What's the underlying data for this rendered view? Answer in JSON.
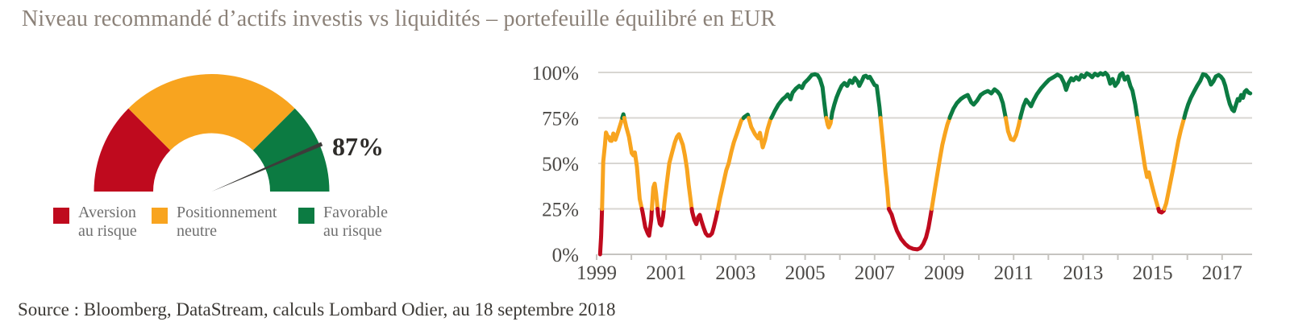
{
  "title": "Niveau recommandé d’actifs investis vs liquidités – portefeuille équilibré en EUR",
  "source": "Source : Bloomberg, DataStream, calculs Lombard Odier, au 18 septembre 2018",
  "colors": {
    "risk_averse": "#bf0a1e",
    "neutral": "#f8a41f",
    "risk_favorable": "#0c7b42",
    "needle": "#3d3c3a",
    "title_text": "#8b8178",
    "legend_text": "#6f6f6f",
    "axis_text": "#4c4a47",
    "source_text": "#3b3834",
    "gridline": "#d8d6d2",
    "axis_line": "#c6c4c0",
    "value_text": "#2e2c29"
  },
  "gauge": {
    "value": 87,
    "value_label": "87%",
    "min": 0,
    "max": 100,
    "segments": [
      {
        "name": "aversion-au-risque",
        "from": 0,
        "to": 25,
        "color_key": "risk_averse"
      },
      {
        "name": "positionnement-neutre",
        "from": 25,
        "to": 75,
        "color_key": "neutral"
      },
      {
        "name": "favorable-au-risque",
        "from": 75,
        "to": 100,
        "color_key": "risk_favorable"
      }
    ]
  },
  "legend": {
    "items": [
      {
        "line1": "Aversion",
        "line2": "au risque",
        "color_key": "risk_averse"
      },
      {
        "line1": "Positionnement",
        "line2": "neutre",
        "color_key": "neutral"
      },
      {
        "line1": "Favorable",
        "line2": "au risque",
        "color_key": "risk_favorable"
      }
    ]
  },
  "chart_data": {
    "type": "line",
    "x_unit": "year",
    "y_unit": "percent",
    "xlim": [
      1999,
      2018
    ],
    "ylim": [
      0,
      100
    ],
    "grid": "horizontal",
    "thresholds": {
      "low": 25,
      "high": 75
    },
    "threshold_colors": {
      "below_low": "risk_averse",
      "between": "neutral",
      "above_high": "risk_favorable"
    },
    "y_ticks": [
      {
        "value": 0,
        "label": "0%"
      },
      {
        "value": 25,
        "label": "25%"
      },
      {
        "value": 50,
        "label": "50%"
      },
      {
        "value": 75,
        "label": "75%"
      },
      {
        "value": 100,
        "label": "100%"
      }
    ],
    "x_ticks": [
      {
        "year": 1999,
        "label": "1999"
      },
      {
        "year": 2001,
        "label": "2001"
      },
      {
        "year": 2003,
        "label": "2003"
      },
      {
        "year": 2005,
        "label": "2005"
      },
      {
        "year": 2007,
        "label": "2007"
      },
      {
        "year": 2009,
        "label": "2009"
      },
      {
        "year": 2011,
        "label": "2011"
      },
      {
        "year": 2013,
        "label": "2013"
      },
      {
        "year": 2015,
        "label": "2015"
      },
      {
        "year": 2017,
        "label": "2017"
      }
    ],
    "minor_tick_years": [
      1999,
      2000,
      2001,
      2002,
      2003,
      2004,
      2005,
      2006,
      2007,
      2008,
      2009,
      2010,
      2011,
      2012,
      2013,
      2014,
      2015,
      2016,
      2017
    ],
    "points": [
      [
        1999.1,
        0
      ],
      [
        1999.13,
        10
      ],
      [
        1999.16,
        28
      ],
      [
        1999.19,
        51
      ],
      [
        1999.24,
        60
      ],
      [
        1999.27,
        67
      ],
      [
        1999.31,
        65
      ],
      [
        1999.35,
        64.5
      ],
      [
        1999.39,
        62.5
      ],
      [
        1999.43,
        62.4
      ],
      [
        1999.48,
        66.4
      ],
      [
        1999.54,
        63
      ],
      [
        1999.62,
        67.5
      ],
      [
        1999.7,
        72.5
      ],
      [
        1999.77,
        77
      ],
      [
        1999.85,
        70.3
      ],
      [
        1999.93,
        64.6
      ],
      [
        2000.01,
        55.7
      ],
      [
        2000.06,
        54.4
      ],
      [
        2000.1,
        56
      ],
      [
        2000.16,
        48.2
      ],
      [
        2000.24,
        30.5
      ],
      [
        2000.32,
        23.4
      ],
      [
        2000.4,
        15
      ],
      [
        2000.47,
        11.5
      ],
      [
        2000.51,
        10.2
      ],
      [
        2000.57,
        19
      ],
      [
        2000.63,
        36.7
      ],
      [
        2000.67,
        38.9
      ],
      [
        2000.71,
        33.6
      ],
      [
        2000.77,
        21.7
      ],
      [
        2000.82,
        16.8
      ],
      [
        2000.86,
        15.9
      ],
      [
        2000.91,
        20.4
      ],
      [
        2000.95,
        27.9
      ],
      [
        2001.02,
        39.4
      ],
      [
        2001.09,
        50
      ],
      [
        2001.17,
        55.8
      ],
      [
        2001.25,
        61.5
      ],
      [
        2001.31,
        64.6
      ],
      [
        2001.37,
        66
      ],
      [
        2001.42,
        63.3
      ],
      [
        2001.48,
        60.2
      ],
      [
        2001.54,
        54.4
      ],
      [
        2001.6,
        46.9
      ],
      [
        2001.65,
        38.1
      ],
      [
        2001.7,
        30.5
      ],
      [
        2001.75,
        23.4
      ],
      [
        2001.81,
        19
      ],
      [
        2001.87,
        16.6
      ],
      [
        2001.92,
        20.4
      ],
      [
        2001.97,
        21.7
      ],
      [
        2002.02,
        18.1
      ],
      [
        2002.08,
        14.6
      ],
      [
        2002.14,
        11.5
      ],
      [
        2002.2,
        10.2
      ],
      [
        2002.26,
        10.3
      ],
      [
        2002.32,
        11.5
      ],
      [
        2002.37,
        14.8
      ],
      [
        2002.43,
        19.6
      ],
      [
        2002.49,
        24.8
      ],
      [
        2002.55,
        30.7
      ],
      [
        2002.6,
        35
      ],
      [
        2002.67,
        41
      ],
      [
        2002.73,
        46.2
      ],
      [
        2002.8,
        50
      ],
      [
        2002.88,
        56.6
      ],
      [
        2002.95,
        61.6
      ],
      [
        2003.03,
        66
      ],
      [
        2003.11,
        70.5
      ],
      [
        2003.16,
        73.5
      ],
      [
        2003.25,
        75.5
      ],
      [
        2003.35,
        76.8
      ],
      [
        2003.45,
        70
      ],
      [
        2003.56,
        66
      ],
      [
        2003.65,
        63.7
      ],
      [
        2003.7,
        66.8
      ],
      [
        2003.78,
        58.8
      ],
      [
        2003.85,
        63
      ],
      [
        2003.92,
        69
      ],
      [
        2004.0,
        74
      ],
      [
        2004.05,
        75.8
      ],
      [
        2004.12,
        78.6
      ],
      [
        2004.23,
        82.3
      ],
      [
        2004.35,
        85.2
      ],
      [
        2004.44,
        86.7
      ],
      [
        2004.5,
        87.9
      ],
      [
        2004.58,
        85.2
      ],
      [
        2004.64,
        88.9
      ],
      [
        2004.74,
        91.2
      ],
      [
        2004.83,
        92.6
      ],
      [
        2004.91,
        91.4
      ],
      [
        2004.98,
        94.2
      ],
      [
        2005.09,
        96.3
      ],
      [
        2005.19,
        98.6
      ],
      [
        2005.28,
        99
      ],
      [
        2005.36,
        98.5
      ],
      [
        2005.43,
        96.3
      ],
      [
        2005.5,
        91.8
      ],
      [
        2005.55,
        83.6
      ],
      [
        2005.6,
        75.6
      ],
      [
        2005.65,
        71.2
      ],
      [
        2005.68,
        69.8
      ],
      [
        2005.73,
        72
      ],
      [
        2005.78,
        77.9
      ],
      [
        2005.84,
        82.3
      ],
      [
        2005.9,
        86
      ],
      [
        2005.98,
        89.8
      ],
      [
        2006.05,
        92.6
      ],
      [
        2006.13,
        94.2
      ],
      [
        2006.21,
        92.6
      ],
      [
        2006.29,
        95.6
      ],
      [
        2006.36,
        94.2
      ],
      [
        2006.43,
        97
      ],
      [
        2006.51,
        95
      ],
      [
        2006.56,
        92.6
      ],
      [
        2006.64,
        95.6
      ],
      [
        2006.69,
        97.8
      ],
      [
        2006.75,
        98.2
      ],
      [
        2006.81,
        97
      ],
      [
        2006.86,
        97.6
      ],
      [
        2006.94,
        95
      ],
      [
        2007.0,
        93
      ],
      [
        2007.06,
        92.6
      ],
      [
        2007.14,
        81
      ],
      [
        2007.2,
        69
      ],
      [
        2007.26,
        57.3
      ],
      [
        2007.31,
        45.4
      ],
      [
        2007.36,
        36.6
      ],
      [
        2007.41,
        24.8
      ],
      [
        2007.49,
        21.9
      ],
      [
        2007.56,
        17.4
      ],
      [
        2007.64,
        13
      ],
      [
        2007.76,
        8.5
      ],
      [
        2007.88,
        5.7
      ],
      [
        2007.99,
        3.9
      ],
      [
        2008.11,
        3
      ],
      [
        2008.23,
        2.7
      ],
      [
        2008.32,
        3.5
      ],
      [
        2008.4,
        5.7
      ],
      [
        2008.48,
        9.3
      ],
      [
        2008.55,
        14.6
      ],
      [
        2008.61,
        21.2
      ],
      [
        2008.67,
        28.3
      ],
      [
        2008.74,
        36.6
      ],
      [
        2008.81,
        44.7
      ],
      [
        2008.88,
        52.7
      ],
      [
        2008.95,
        60.2
      ],
      [
        2009.02,
        66
      ],
      [
        2009.09,
        71.2
      ],
      [
        2009.17,
        75.6
      ],
      [
        2009.27,
        80.1
      ],
      [
        2009.37,
        83.2
      ],
      [
        2009.48,
        85.4
      ],
      [
        2009.58,
        86.7
      ],
      [
        2009.68,
        87.6
      ],
      [
        2009.78,
        83.6
      ],
      [
        2009.85,
        82.3
      ],
      [
        2009.95,
        84.5
      ],
      [
        2010.05,
        87.6
      ],
      [
        2010.15,
        88.9
      ],
      [
        2010.26,
        89.8
      ],
      [
        2010.36,
        88.5
      ],
      [
        2010.45,
        90.7
      ],
      [
        2010.54,
        89.4
      ],
      [
        2010.61,
        87.6
      ],
      [
        2010.69,
        83.2
      ],
      [
        2010.77,
        75.2
      ],
      [
        2010.84,
        67.7
      ],
      [
        2010.92,
        63.3
      ],
      [
        2011.0,
        62.8
      ],
      [
        2011.07,
        65.5
      ],
      [
        2011.14,
        70.4
      ],
      [
        2011.21,
        76.5
      ],
      [
        2011.28,
        81.4
      ],
      [
        2011.36,
        85
      ],
      [
        2011.44,
        83
      ],
      [
        2011.5,
        81.4
      ],
      [
        2011.57,
        84.5
      ],
      [
        2011.67,
        88
      ],
      [
        2011.79,
        91.2
      ],
      [
        2011.91,
        93.8
      ],
      [
        2012.02,
        96
      ],
      [
        2012.14,
        97.3
      ],
      [
        2012.26,
        98.8
      ],
      [
        2012.36,
        97.8
      ],
      [
        2012.45,
        94.2
      ],
      [
        2012.51,
        90.4
      ],
      [
        2012.58,
        94.2
      ],
      [
        2012.66,
        96.8
      ],
      [
        2012.72,
        95.6
      ],
      [
        2012.8,
        97.4
      ],
      [
        2012.88,
        96
      ],
      [
        2012.95,
        98.6
      ],
      [
        2013.03,
        97.4
      ],
      [
        2013.11,
        99.5
      ],
      [
        2013.19,
        98.6
      ],
      [
        2013.26,
        97.4
      ],
      [
        2013.34,
        99.3
      ],
      [
        2013.42,
        98.3
      ],
      [
        2013.5,
        99.6
      ],
      [
        2013.57,
        98.8
      ],
      [
        2013.64,
        99.8
      ],
      [
        2013.71,
        98.3
      ],
      [
        2013.78,
        93.8
      ],
      [
        2013.85,
        96.4
      ],
      [
        2013.92,
        92.6
      ],
      [
        2014.0,
        94.7
      ],
      [
        2014.06,
        98.6
      ],
      [
        2014.13,
        99.6
      ],
      [
        2014.2,
        96
      ],
      [
        2014.28,
        97.8
      ],
      [
        2014.36,
        92.6
      ],
      [
        2014.42,
        90
      ],
      [
        2014.5,
        82.3
      ],
      [
        2014.57,
        73.8
      ],
      [
        2014.64,
        65.3
      ],
      [
        2014.71,
        56.8
      ],
      [
        2014.78,
        48.2
      ],
      [
        2014.84,
        42.5
      ],
      [
        2014.89,
        45.1
      ],
      [
        2014.95,
        40.3
      ],
      [
        2015.01,
        35.8
      ],
      [
        2015.07,
        31.4
      ],
      [
        2015.13,
        27.4
      ],
      [
        2015.19,
        23.5
      ],
      [
        2015.26,
        23
      ],
      [
        2015.32,
        24
      ],
      [
        2015.39,
        28
      ],
      [
        2015.46,
        34.5
      ],
      [
        2015.53,
        41.2
      ],
      [
        2015.6,
        48.2
      ],
      [
        2015.67,
        55.3
      ],
      [
        2015.74,
        62.4
      ],
      [
        2015.81,
        68.1
      ],
      [
        2015.88,
        73
      ],
      [
        2015.95,
        77.9
      ],
      [
        2016.02,
        82.3
      ],
      [
        2016.1,
        86
      ],
      [
        2016.19,
        89.4
      ],
      [
        2016.28,
        92.6
      ],
      [
        2016.37,
        95.3
      ],
      [
        2016.45,
        99
      ],
      [
        2016.53,
        98.6
      ],
      [
        2016.61,
        96.8
      ],
      [
        2016.68,
        93.3
      ],
      [
        2016.75,
        95.1
      ],
      [
        2016.82,
        97.8
      ],
      [
        2016.9,
        98.6
      ],
      [
        2016.96,
        97.8
      ],
      [
        2017.03,
        96
      ],
      [
        2017.09,
        92.6
      ],
      [
        2017.15,
        87.6
      ],
      [
        2017.22,
        82.7
      ],
      [
        2017.29,
        79.6
      ],
      [
        2017.34,
        78.7
      ],
      [
        2017.4,
        82.3
      ],
      [
        2017.45,
        85.4
      ],
      [
        2017.5,
        84.5
      ],
      [
        2017.55,
        87.6
      ],
      [
        2017.6,
        86
      ],
      [
        2017.65,
        89.4
      ],
      [
        2017.7,
        90.3
      ],
      [
        2017.76,
        88.9
      ],
      [
        2017.81,
        88.5
      ]
    ]
  }
}
